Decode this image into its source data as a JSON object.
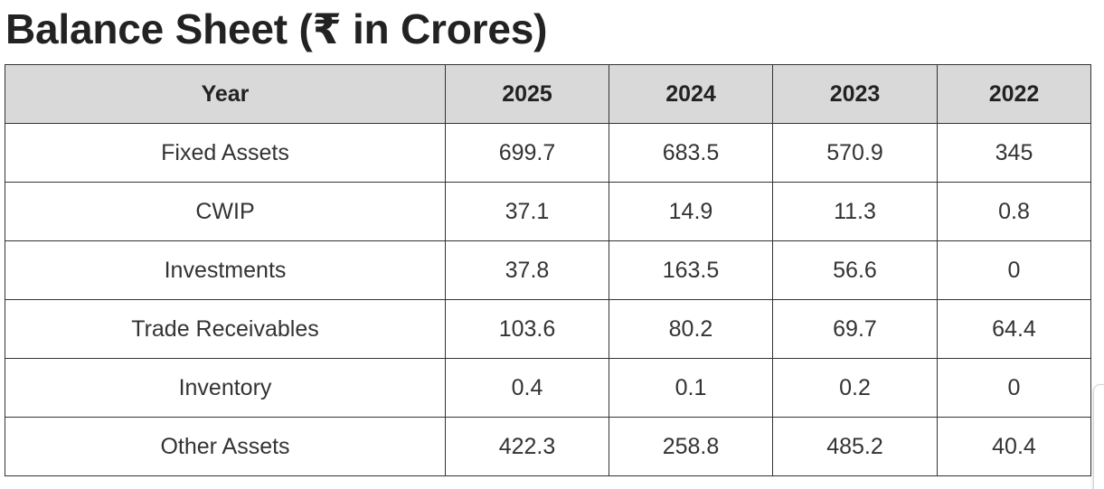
{
  "title": "Balance Sheet (₹ in Crores)",
  "table": {
    "columns": [
      "Year",
      "2025",
      "2024",
      "2023",
      "2022"
    ],
    "rows": [
      {
        "label": "Fixed Assets",
        "values": [
          "699.7",
          "683.5",
          "570.9",
          "345"
        ]
      },
      {
        "label": "CWIP",
        "values": [
          "37.1",
          "14.9",
          "11.3",
          "0.8"
        ]
      },
      {
        "label": "Investments",
        "values": [
          "37.8",
          "163.5",
          "56.6",
          "0"
        ]
      },
      {
        "label": "Trade Receivables",
        "values": [
          "103.6",
          "80.2",
          "69.7",
          "64.4"
        ]
      },
      {
        "label": "Inventory",
        "values": [
          "0.4",
          "0.1",
          "0.2",
          "0"
        ]
      },
      {
        "label": "Other Assets",
        "values": [
          "422.3",
          "258.8",
          "485.2",
          "40.4"
        ]
      }
    ]
  }
}
